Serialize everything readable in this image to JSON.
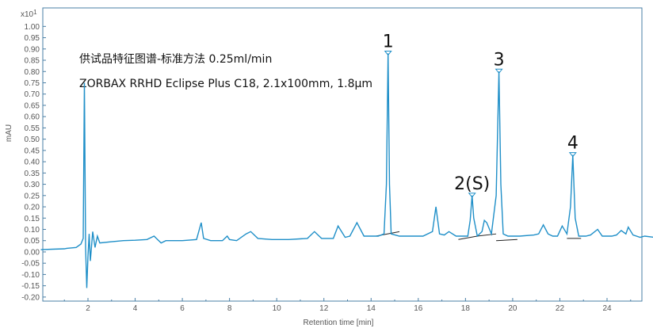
{
  "chart_data": {
    "type": "line",
    "title": "",
    "xlabel": "Retention time [min]",
    "ylabel": "mAU",
    "y_exponent_label": "x10",
    "y_exponent_sup": "1",
    "xlim": [
      0,
      26
    ],
    "ylim": [
      -0.22,
      1.06
    ],
    "x_ticks": [
      2,
      4,
      6,
      8,
      10,
      12,
      14,
      16,
      18,
      20,
      22,
      24
    ],
    "y_ticks": [
      -0.2,
      -0.15,
      -0.1,
      -0.05,
      0.0,
      0.05,
      0.1,
      0.15,
      0.2,
      0.25,
      0.3,
      0.35,
      0.4,
      0.45,
      0.5,
      0.55,
      0.6,
      0.65,
      0.7,
      0.75,
      0.8,
      0.85,
      0.9,
      0.95,
      1.0
    ],
    "y_tick_labels": [
      "-0.20",
      "-0.15",
      "-0.10",
      "-0.05",
      "0.00",
      "0.05",
      "0.10",
      "0.15",
      "0.20",
      "0.25",
      "0.30",
      "0.35",
      "0.40",
      "0.45",
      "0.50",
      "0.55",
      "0.60",
      "0.65",
      "0.70",
      "0.75",
      "0.80",
      "0.85",
      "0.90",
      "0.95",
      "1.00"
    ],
    "grid": false,
    "line_color": "#1f8fc8",
    "baseline_color": "#222222",
    "annotations": [
      "供试品特征图谱-标准方法 0.25ml/min",
      "ZORBAX RRHD Eclipse Plus C18, 2.1x100mm, 1.8μm"
    ],
    "peak_labels": [
      {
        "label": "1",
        "x": 14.72,
        "y": 0.88
      },
      {
        "label": "2(S)",
        "x": 18.28,
        "y": 0.25
      },
      {
        "label": "3",
        "x": 19.42,
        "y": 0.8
      },
      {
        "label": "4",
        "x": 22.55,
        "y": 0.43
      }
    ],
    "series": [
      {
        "x": [
          0,
          0.5,
          1.0,
          1.1,
          1.5,
          1.7,
          1.8,
          1.85,
          1.9,
          1.95,
          2.0,
          2.05,
          2.1,
          2.2,
          2.3,
          2.4,
          2.5,
          3,
          3.5,
          4,
          4.5,
          4.8,
          5,
          5.1,
          5.3,
          6,
          6.6,
          6.8,
          6.9,
          7.2,
          7.7,
          7.9,
          8.0,
          8.3,
          8.7,
          8.9,
          9.2,
          9.8,
          10.5,
          11.3,
          11.6,
          11.9,
          12.2,
          12.4,
          12.6,
          12.9,
          13.1,
          13.4,
          13.7,
          14.3,
          14.55,
          14.65,
          14.72,
          14.78,
          14.85,
          15.2,
          16.2,
          16.6,
          16.75,
          16.9,
          17.1,
          17.3,
          17.6,
          17.9,
          18.1,
          18.2,
          18.28,
          18.35,
          18.5,
          18.7,
          18.8,
          18.9,
          19.1,
          19.3,
          19.42,
          19.5,
          19.6,
          19.8,
          20.3,
          20.9,
          21.1,
          21.3,
          21.5,
          21.7,
          21.9,
          22.1,
          22.3,
          22.45,
          22.55,
          22.65,
          22.8,
          23.1,
          23.3,
          23.6,
          23.8,
          24.2,
          24.4,
          24.6,
          24.8,
          24.9,
          25.1,
          25.4,
          25.6,
          26
        ],
        "y": [
          0.01,
          0.012,
          0.014,
          0.016,
          0.02,
          0.035,
          0.06,
          0.75,
          0.02,
          -0.16,
          -0.02,
          0.08,
          -0.04,
          0.09,
          0.02,
          0.07,
          0.04,
          0.045,
          0.05,
          0.052,
          0.055,
          0.07,
          0.05,
          0.04,
          0.05,
          0.05,
          0.055,
          0.13,
          0.06,
          0.05,
          0.05,
          0.07,
          0.055,
          0.05,
          0.08,
          0.09,
          0.06,
          0.055,
          0.055,
          0.06,
          0.09,
          0.06,
          0.06,
          0.06,
          0.115,
          0.065,
          0.07,
          0.13,
          0.07,
          0.07,
          0.08,
          0.3,
          0.88,
          0.3,
          0.08,
          0.07,
          0.07,
          0.09,
          0.2,
          0.08,
          0.075,
          0.09,
          0.07,
          0.07,
          0.07,
          0.14,
          0.25,
          0.15,
          0.07,
          0.09,
          0.14,
          0.13,
          0.08,
          0.25,
          0.8,
          0.3,
          0.08,
          0.07,
          0.07,
          0.075,
          0.08,
          0.12,
          0.08,
          0.07,
          0.07,
          0.115,
          0.08,
          0.2,
          0.43,
          0.15,
          0.07,
          0.07,
          0.075,
          0.1,
          0.07,
          0.07,
          0.075,
          0.095,
          0.08,
          0.11,
          0.075,
          0.065,
          0.07,
          0.065
        ]
      }
    ],
    "integration_baselines": [
      {
        "x": [
          14.2,
          15.2
        ],
        "y": [
          0.07,
          0.09
        ]
      },
      {
        "x": [
          17.7,
          18.5
        ],
        "y": [
          0.055,
          0.07
        ]
      },
      {
        "x": [
          18.5,
          19.3
        ],
        "y": [
          0.07,
          0.08
        ]
      },
      {
        "x": [
          19.3,
          20.2
        ],
        "y": [
          0.05,
          0.055
        ]
      },
      {
        "x": [
          22.3,
          22.9
        ],
        "y": [
          0.06,
          0.06
        ]
      }
    ]
  }
}
